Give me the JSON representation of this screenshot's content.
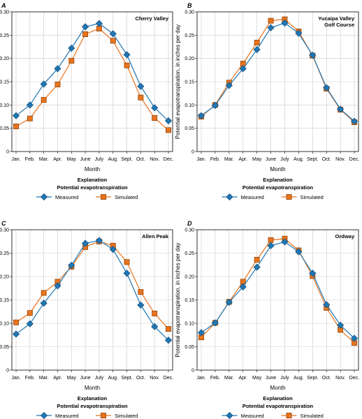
{
  "colors": {
    "measured": "#1f77b4",
    "simulated": "#e8741e",
    "grid": "#c9c9c9",
    "axis": "#000000"
  },
  "explanation": {
    "title": "Explanation",
    "subtitle": "Potential evapotranspiration"
  },
  "chart_data": [
    {
      "type": "line",
      "panel": "A",
      "title_lines": [
        "Cherry Valley"
      ],
      "xlabel": "Month",
      "ylabel": "Potential evapotranspiration, in inches per day",
      "ylim": [
        0,
        0.3
      ],
      "y_ticks": [
        "0",
        "0.05",
        "0.10",
        "0.15",
        "0.20",
        "0.25",
        "0.30"
      ],
      "grid": true,
      "categories": [
        "Jan.",
        "Feb.",
        "Mar.",
        "Apr.",
        "May",
        "June",
        "July",
        "Aug.",
        "Sept.",
        "Oct.",
        "Nov.",
        "Dec."
      ],
      "series": [
        {
          "name": "Measured",
          "marker": "diamond",
          "values": [
            0.077,
            0.1,
            0.145,
            0.178,
            0.222,
            0.268,
            0.275,
            0.253,
            0.208,
            0.14,
            0.094,
            0.066
          ]
        },
        {
          "name": "Simulated",
          "marker": "square",
          "values": [
            0.054,
            0.071,
            0.111,
            0.144,
            0.195,
            0.252,
            0.264,
            0.238,
            0.185,
            0.116,
            0.072,
            0.046
          ]
        }
      ]
    },
    {
      "type": "line",
      "panel": "B",
      "title_lines": [
        "Yucaipa Valley",
        "Golf Course"
      ],
      "xlabel": "Month",
      "ylabel": "Potential evapotranspiration, in inches per day",
      "ylim": [
        0,
        0.3
      ],
      "y_ticks": [
        "0",
        "0.05",
        "0.10",
        "0.15",
        "0.20",
        "0.25",
        "0.30"
      ],
      "grid": true,
      "categories": [
        "Jan.",
        "Feb.",
        "Mar.",
        "Apr.",
        "May",
        "June",
        "July",
        "Aug.",
        "Sept.",
        "Oct.",
        "Nov.",
        "Dec."
      ],
      "series": [
        {
          "name": "Measured",
          "marker": "diamond",
          "values": [
            0.077,
            0.099,
            0.142,
            0.178,
            0.219,
            0.266,
            0.276,
            0.254,
            0.207,
            0.137,
            0.091,
            0.065
          ]
        },
        {
          "name": "Simulated",
          "marker": "square",
          "values": [
            0.075,
            0.1,
            0.148,
            0.189,
            0.234,
            0.281,
            0.284,
            0.258,
            0.206,
            0.135,
            0.09,
            0.063
          ]
        }
      ]
    },
    {
      "type": "line",
      "panel": "C",
      "title_lines": [
        "Allen Peak"
      ],
      "xlabel": "Month",
      "ylabel": "Potential evapotranspiration, in inches per day",
      "ylim": [
        0,
        0.3
      ],
      "y_ticks": [
        "0",
        "0.05",
        "0.10",
        "0.15",
        "0.20",
        "0.25",
        "0.30"
      ],
      "grid": true,
      "categories": [
        "Jan.",
        "Feb.",
        "Mar.",
        "Apr.",
        "May",
        "June",
        "July",
        "Aug.",
        "Sept.",
        "Oct.",
        "Nov.",
        "Dec."
      ],
      "series": [
        {
          "name": "Measured",
          "marker": "diamond",
          "values": [
            0.077,
            0.099,
            0.143,
            0.18,
            0.224,
            0.271,
            0.277,
            0.258,
            0.207,
            0.139,
            0.093,
            0.064
          ]
        },
        {
          "name": "Simulated",
          "marker": "square",
          "values": [
            0.102,
            0.122,
            0.165,
            0.189,
            0.221,
            0.263,
            0.275,
            0.266,
            0.231,
            0.167,
            0.121,
            0.088
          ]
        }
      ]
    },
    {
      "type": "line",
      "panel": "D",
      "title_lines": [
        "Ordway"
      ],
      "xlabel": "Month",
      "ylabel": "Potential evapotranspiration, in inches per day",
      "ylim": [
        0,
        0.3
      ],
      "y_ticks": [
        "0",
        "0.05",
        "0.10",
        "0.15",
        "0.20",
        "0.25",
        "0.30"
      ],
      "grid": true,
      "categories": [
        "Jan.",
        "Feb.",
        "Mar.",
        "Apr.",
        "May",
        "June",
        "July",
        "Aug.",
        "Sept.",
        "Oct.",
        "Nov.",
        "Dec."
      ],
      "series": [
        {
          "name": "Measured",
          "marker": "diamond",
          "values": [
            0.08,
            0.101,
            0.145,
            0.178,
            0.22,
            0.266,
            0.274,
            0.253,
            0.207,
            0.14,
            0.096,
            0.068
          ]
        },
        {
          "name": "Simulated",
          "marker": "square",
          "values": [
            0.07,
            0.101,
            0.146,
            0.189,
            0.236,
            0.278,
            0.281,
            0.256,
            0.201,
            0.133,
            0.086,
            0.058
          ]
        }
      ]
    }
  ]
}
